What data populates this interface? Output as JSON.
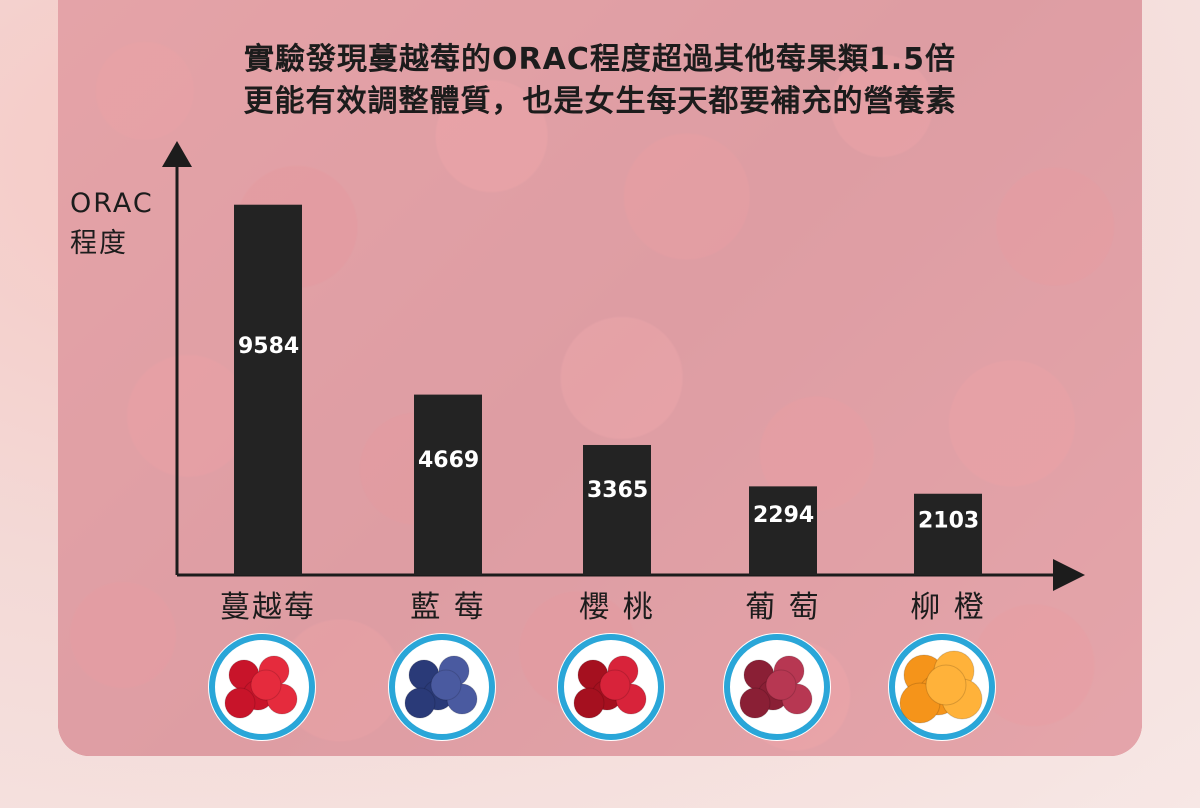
{
  "chart_data": {
    "type": "bar",
    "title_lines": [
      "實驗發現蔓越莓的ORAC程度超過其他莓果類1.5倍",
      "更能有效調整體質，也是女生每天都要補充的營養素"
    ],
    "ylabel_lines": [
      "ORAC",
      "程度"
    ],
    "xlabel": "",
    "categories": [
      "蔓越莓",
      "藍 莓",
      "櫻 桃",
      "葡 萄",
      "柳 橙"
    ],
    "values": [
      9584,
      4669,
      3365,
      2294,
      2103
    ],
    "value_labels": [
      "9584",
      "4669",
      "3365",
      "2294",
      "2103"
    ],
    "ylim": [
      0,
      11000
    ],
    "grid": false,
    "legend": "none",
    "fruit_icons": [
      "cranberry-icon",
      "blueberry-icon",
      "cherry-icon",
      "grape-icon",
      "orange-icon"
    ],
    "colors": {
      "bar": "#232323",
      "axis": "#1c1c1c",
      "icon_ring": "#2aa6d8"
    }
  }
}
